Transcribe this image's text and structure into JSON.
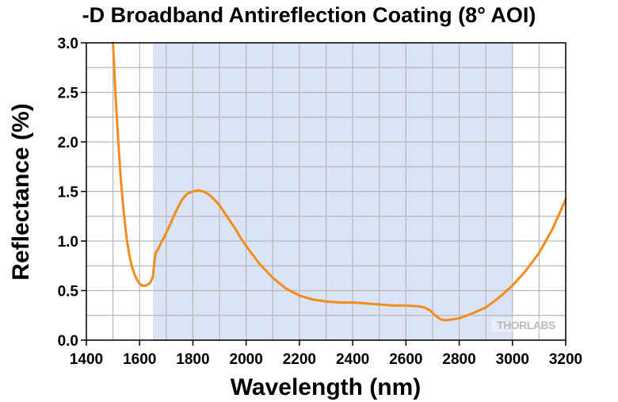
{
  "chart_data": {
    "type": "line",
    "title": "-D Broadband Antireflection Coating (8° AOI)",
    "xlabel": "Wavelength (nm)",
    "ylabel": "Reflectance (%)",
    "xlim": [
      1400,
      3200
    ],
    "ylim": [
      0,
      3.0
    ],
    "xticks": [
      1400,
      1600,
      1800,
      2000,
      2200,
      2400,
      2600,
      2800,
      3000,
      3200
    ],
    "yticks": [
      "0.0",
      "0.5",
      "1.0",
      "1.5",
      "2.0",
      "2.5",
      "3.0"
    ],
    "grid": true,
    "shaded_band": {
      "x_range": [
        1650,
        3000
      ],
      "color": "#dbe3f6"
    },
    "series": [
      {
        "color": "#f28c1d",
        "x": [
          1500,
          1510,
          1520,
          1530,
          1540,
          1550,
          1560,
          1570,
          1580,
          1590,
          1600,
          1610,
          1620,
          1630,
          1640,
          1650,
          1655,
          1660,
          1670,
          1680,
          1700,
          1720,
          1740,
          1760,
          1780,
          1800,
          1820,
          1840,
          1860,
          1880,
          1900,
          1920,
          1940,
          1960,
          1980,
          2000,
          2050,
          2100,
          2150,
          2200,
          2250,
          2300,
          2350,
          2400,
          2450,
          2500,
          2550,
          2600,
          2650,
          2670,
          2690,
          2710,
          2730,
          2750,
          2800,
          2850,
          2900,
          2950,
          3000,
          3050,
          3100,
          3150,
          3200
        ],
        "y": [
          3.0,
          2.45,
          2.0,
          1.6,
          1.3,
          1.05,
          0.88,
          0.75,
          0.67,
          0.61,
          0.57,
          0.55,
          0.55,
          0.56,
          0.58,
          0.64,
          0.78,
          0.88,
          0.92,
          0.98,
          1.08,
          1.2,
          1.32,
          1.42,
          1.48,
          1.5,
          1.51,
          1.5,
          1.47,
          1.42,
          1.36,
          1.28,
          1.2,
          1.12,
          1.03,
          0.95,
          0.77,
          0.63,
          0.52,
          0.45,
          0.41,
          0.39,
          0.38,
          0.38,
          0.37,
          0.36,
          0.35,
          0.35,
          0.34,
          0.33,
          0.3,
          0.25,
          0.21,
          0.2,
          0.22,
          0.27,
          0.33,
          0.43,
          0.55,
          0.7,
          0.88,
          1.12,
          1.42
        ]
      }
    ]
  },
  "watermark": {
    "logo": "THORLABS"
  }
}
